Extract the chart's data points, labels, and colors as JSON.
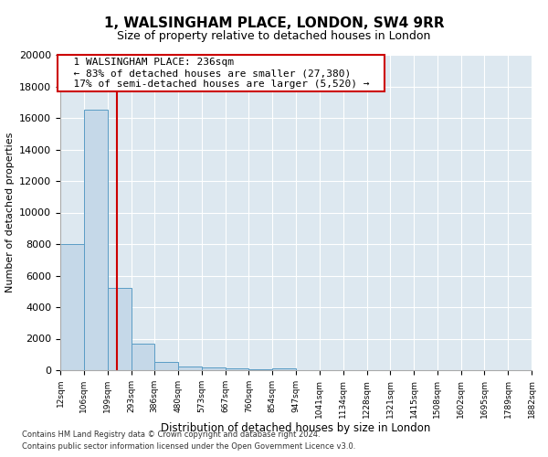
{
  "title": "1, WALSINGHAM PLACE, LONDON, SW4 9RR",
  "subtitle": "Size of property relative to detached houses in London",
  "xlabel": "Distribution of detached houses by size in London",
  "ylabel": "Number of detached properties",
  "footnote1": "Contains HM Land Registry data © Crown copyright and database right 2024.",
  "footnote2": "Contains public sector information licensed under the Open Government Licence v3.0.",
  "annotation_line1": "  1 WALSINGHAM PLACE: 236sqm  ",
  "annotation_line2": "  ← 83% of detached houses are smaller (27,380)  ",
  "annotation_line3": "  17% of semi-detached houses are larger (5,520) →  ",
  "property_size": 236,
  "bar_edges": [
    12,
    106,
    199,
    293,
    386,
    480,
    573,
    667,
    760,
    854,
    947,
    1041,
    1134,
    1228,
    1321,
    1415,
    1508,
    1602,
    1695,
    1789,
    1882
  ],
  "bar_heights": [
    8000,
    16500,
    5200,
    1700,
    500,
    230,
    160,
    100,
    60,
    100,
    0,
    0,
    0,
    0,
    0,
    0,
    0,
    0,
    0,
    0
  ],
  "bar_color": "#c5d8e8",
  "bar_edge_color": "#5a9cc5",
  "red_line_color": "#cc0000",
  "background_color": "#dde8f0",
  "annotation_box_color": "#ffffff",
  "annotation_box_edge": "#cc0000",
  "ylim": [
    0,
    20000
  ],
  "yticks": [
    0,
    2000,
    4000,
    6000,
    8000,
    10000,
    12000,
    14000,
    16000,
    18000,
    20000
  ],
  "tick_labels": [
    "12sqm",
    "106sqm",
    "199sqm",
    "293sqm",
    "386sqm",
    "480sqm",
    "573sqm",
    "667sqm",
    "760sqm",
    "854sqm",
    "947sqm",
    "1041sqm",
    "1134sqm",
    "1228sqm",
    "1321sqm",
    "1415sqm",
    "1508sqm",
    "1602sqm",
    "1695sqm",
    "1789sqm",
    "1882sqm"
  ]
}
